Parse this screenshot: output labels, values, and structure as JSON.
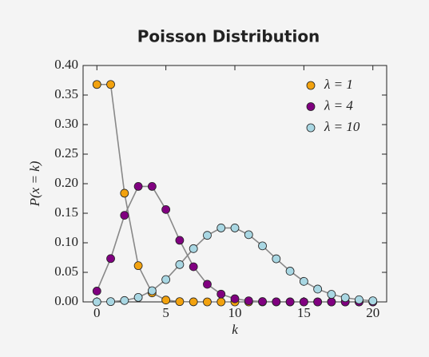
{
  "chart_data": {
    "type": "line",
    "title": "Poisson Distribution",
    "x_label": "k",
    "y_label": "P(x = k)",
    "x": [
      0,
      1,
      2,
      3,
      4,
      5,
      6,
      7,
      8,
      9,
      10,
      11,
      12,
      13,
      14,
      15,
      16,
      17,
      18,
      19,
      20
    ],
    "series": [
      {
        "name": "λ = 1",
        "color": "#f2a20f",
        "values": [
          0.3679,
          0.3679,
          0.1839,
          0.0613,
          0.0153,
          0.0031,
          0.0005,
          0.0001,
          0,
          0,
          0,
          0,
          0,
          0,
          0,
          0,
          0,
          0,
          0,
          0,
          0
        ]
      },
      {
        "name": "λ = 4",
        "color": "#800080",
        "values": [
          0.0183,
          0.0733,
          0.1465,
          0.1954,
          0.1954,
          0.1563,
          0.1042,
          0.0595,
          0.0298,
          0.0132,
          0.0053,
          0.0019,
          0.0006,
          0.0002,
          0.0001,
          0,
          0,
          0,
          0,
          0,
          0
        ]
      },
      {
        "name": "λ = 10",
        "color": "#a9d7e3",
        "values": [
          0,
          0.0005,
          0.0023,
          0.0076,
          0.0189,
          0.0378,
          0.0631,
          0.0901,
          0.1126,
          0.1251,
          0.1251,
          0.1137,
          0.0948,
          0.0729,
          0.0521,
          0.0347,
          0.0217,
          0.0128,
          0.0071,
          0.0037,
          0.0019
        ]
      }
    ],
    "line_color": "#888888",
    "xlim": [
      -1,
      21
    ],
    "xticks": [
      0,
      5,
      10,
      15,
      20
    ],
    "ylim": [
      0,
      0.4
    ],
    "yticks": [
      {
        "value": 0,
        "label": "0.00"
      },
      {
        "value": 0.05,
        "label": "0.05"
      },
      {
        "value": 0.1,
        "label": "0.10"
      },
      {
        "value": 0.15,
        "label": "0.15"
      },
      {
        "value": 0.2,
        "label": "0.20"
      },
      {
        "value": 0.25,
        "label": "0.25"
      },
      {
        "value": 0.3,
        "label": "0.30"
      },
      {
        "value": 0.35,
        "label": "0.35"
      },
      {
        "value": 0.4,
        "label": "0.40"
      }
    ],
    "legend": "upper right"
  }
}
